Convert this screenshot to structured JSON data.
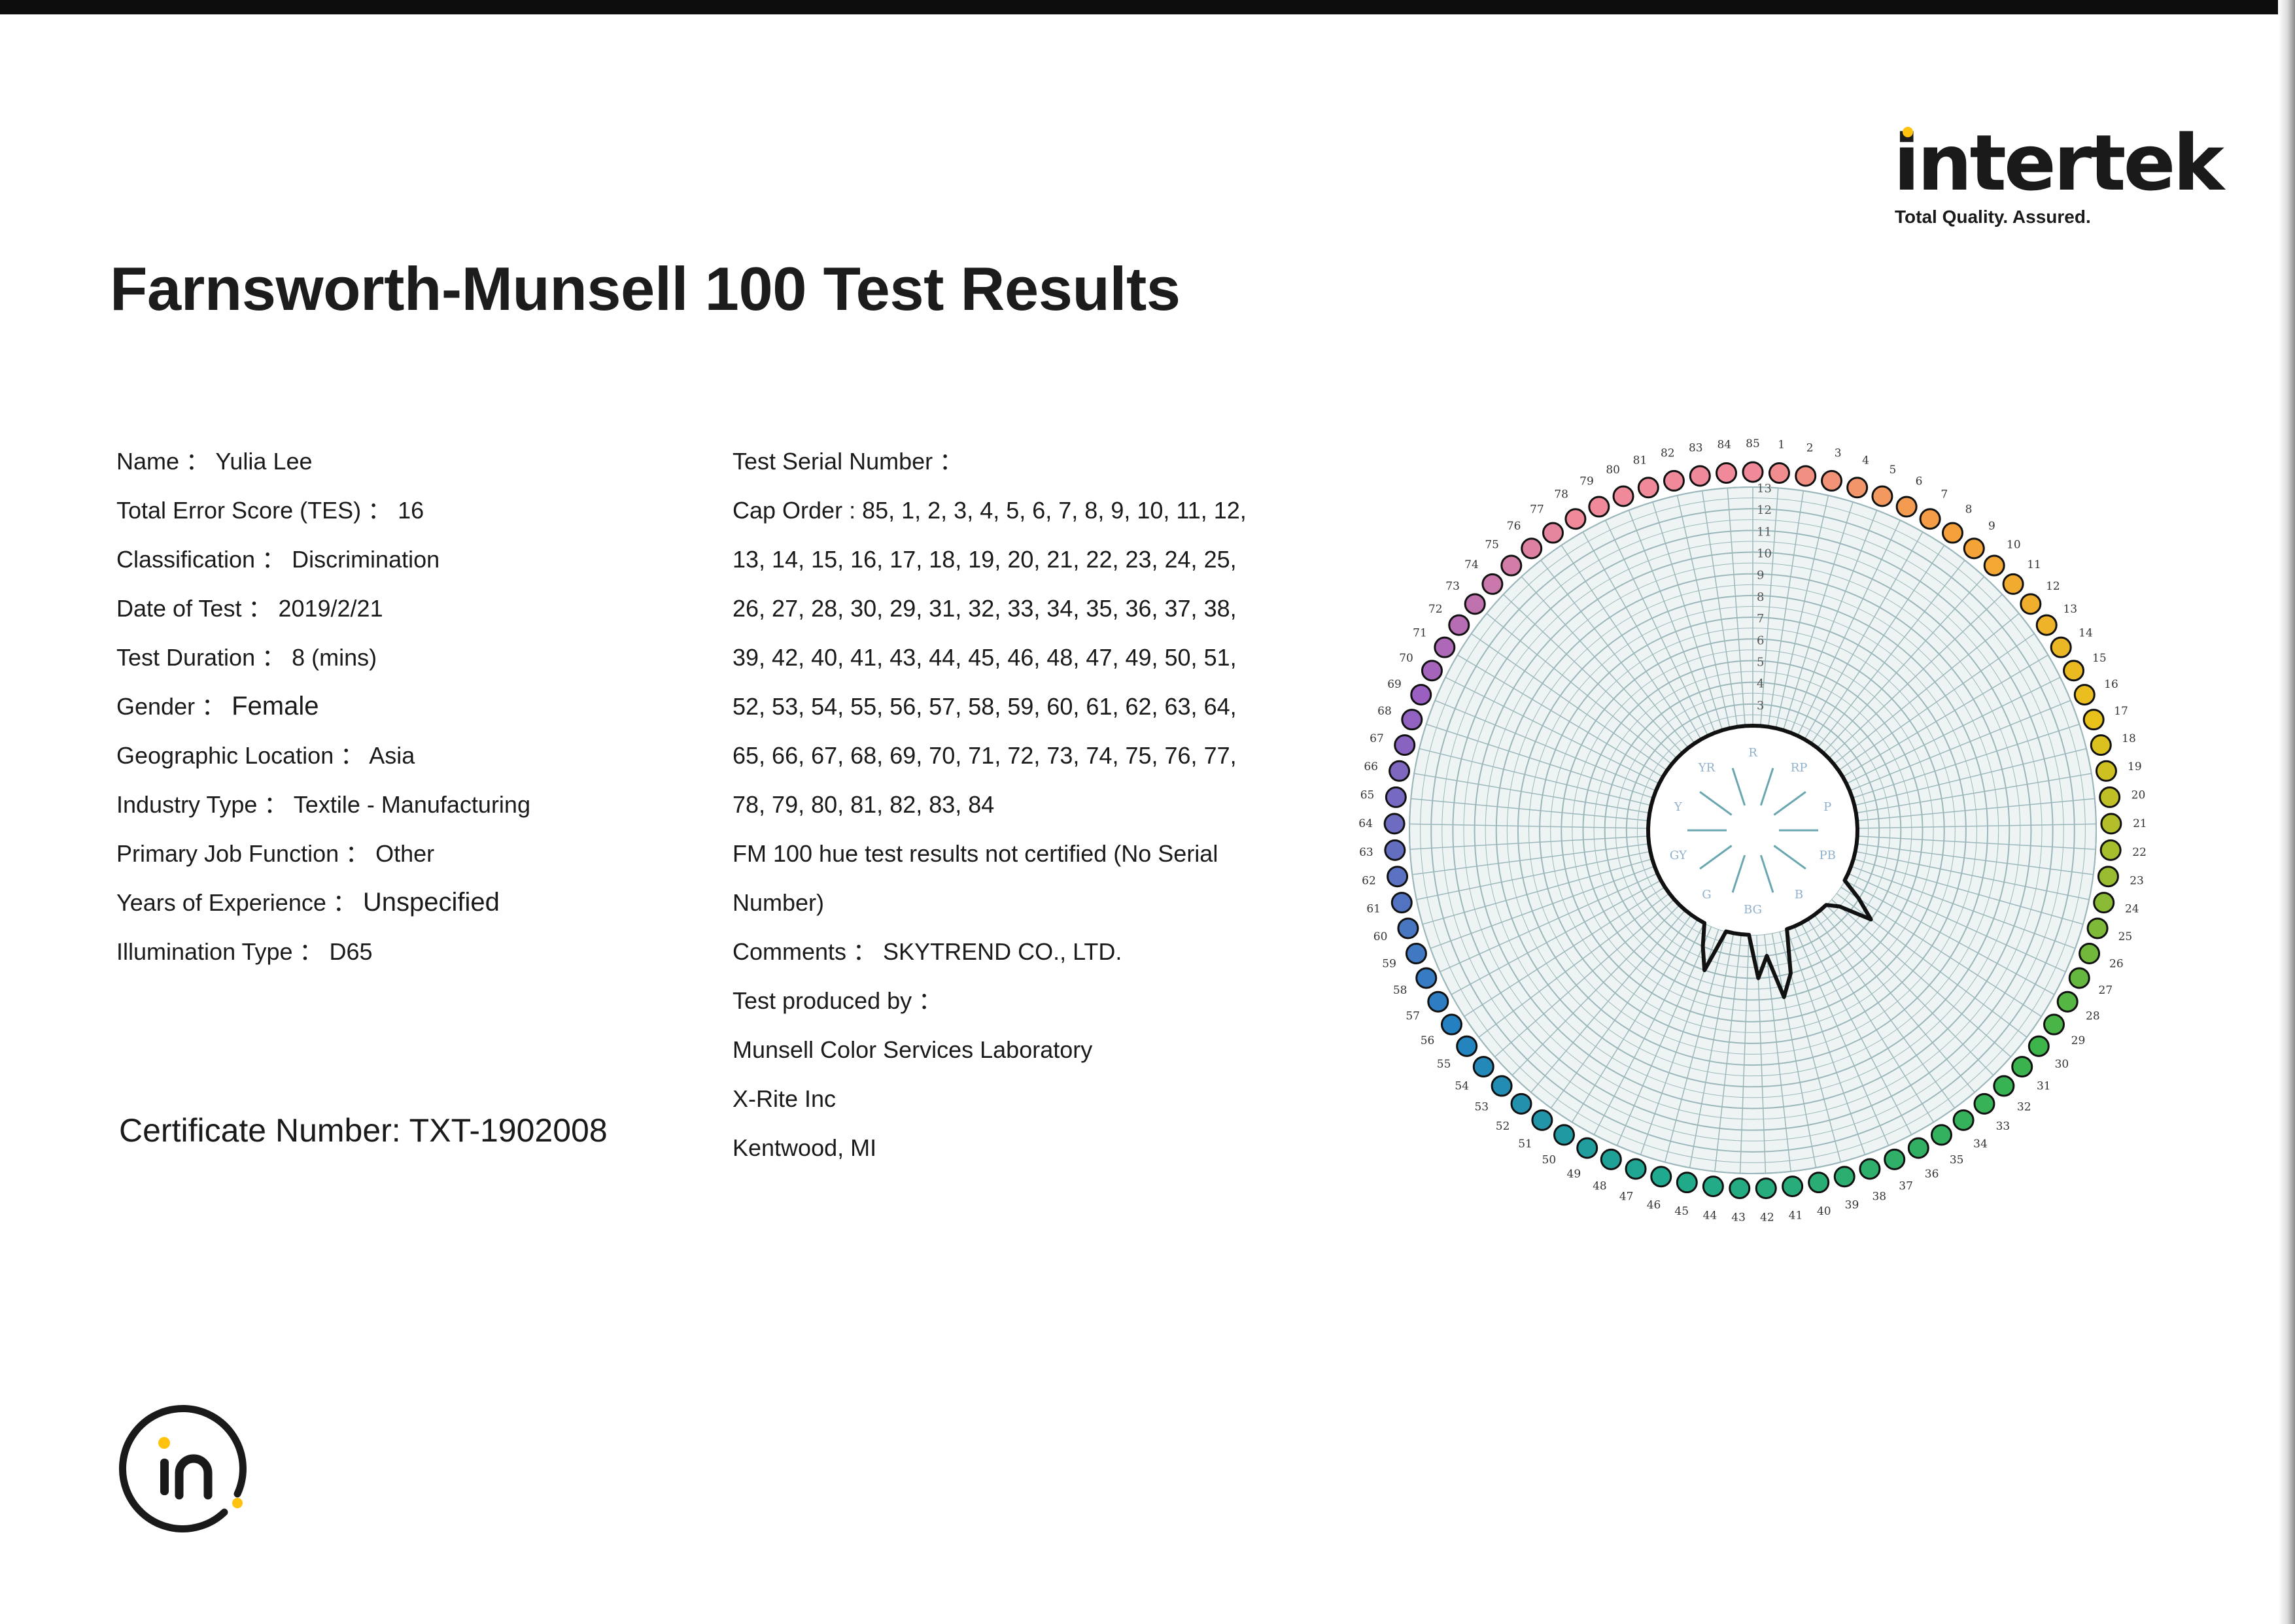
{
  "header": {
    "logo_text": "intertek",
    "logo_tagline": "Total Quality. Assured.",
    "title": "Farnsworth-Munsell 100 Test Results"
  },
  "details": {
    "name": "Name ： Yulia Lee",
    "tes": "Total Error Score (TES) ：  16",
    "classification": "Classification ： Discrimination",
    "date": "Date of Test ： 2019/2/21",
    "duration": "Test Duration ： 8 (mins)",
    "gender_label": "Gender ：",
    "gender_value": "Female",
    "location": "Geographic Location ： Asia",
    "industry": "Industry Type ： Textile - Manufacturing",
    "job": "Primary Job Function ： Other",
    "experience_label": "Years of Experience ：",
    "experience_value": "Unspecified",
    "illumination": "Illumination Type ： D65"
  },
  "certificate": "Certificate Number: TXT-1902008",
  "test_info": {
    "serial": "Test Serial Number ：",
    "cap_order_lines": [
      "Cap Order : 85, 1, 2, 3, 4, 5, 6, 7, 8, 9, 10, 11, 12,",
      "13, 14, 15, 16, 17, 18, 19, 20, 21, 22, 23, 24, 25,",
      "26, 27, 28, 30, 29, 31, 32, 33, 34, 35, 36, 37, 38,",
      "39, 42, 40, 41, 43, 44, 45, 46, 48, 47, 49, 50, 51,",
      "52, 53, 54, 55, 56, 57, 58, 59, 60, 61, 62, 63, 64,",
      "65, 66, 67, 68, 69, 70, 71, 72, 73, 74, 75, 76, 77,",
      "78, 79, 80, 81, 82, 83, 84"
    ],
    "certification_lines": [
      "FM 100 hue test results not certified (No Serial",
      "Number)"
    ],
    "comments": "Comments ： SKYTREND CO., LTD.",
    "produced_by": "Test produced by ：",
    "producer_lines": [
      "Munsell Color Services Laboratory",
      "X-Rite Inc",
      "Kentwood, MI"
    ]
  },
  "chart_data": {
    "type": "polar-error-plot",
    "cap_count": 85,
    "radial_scale_labels": [
      "13",
      "12",
      "11",
      "10",
      "9",
      "8",
      "7",
      "6",
      "5",
      "4",
      "3"
    ],
    "radial_max": 13,
    "baseline": 2,
    "hue_labels": [
      "R",
      "RP",
      "P",
      "PB",
      "B",
      "BG",
      "G",
      "GY",
      "Y",
      "YR"
    ],
    "errors": [
      2,
      2,
      2,
      2,
      2,
      2,
      2,
      2,
      2,
      2,
      2,
      2,
      2,
      2,
      2,
      2,
      2,
      2,
      2,
      2,
      2,
      2,
      2,
      2,
      2,
      2,
      2,
      2,
      3,
      4,
      2.5,
      2,
      2,
      2,
      2,
      2,
      2,
      2,
      4,
      5,
      3,
      4,
      2,
      2,
      2,
      2,
      4,
      3,
      2,
      2,
      2,
      2,
      2,
      2,
      2,
      2,
      2,
      2,
      2,
      2,
      2,
      2,
      2,
      2,
      2,
      2,
      2,
      2,
      2,
      2,
      2,
      2,
      2,
      2,
      2,
      2,
      2,
      2,
      2,
      2,
      2,
      2,
      2,
      2,
      2
    ],
    "cap_colors": {
      "orange": "#f5a03a",
      "yellow": "#e8c21a",
      "green": "#3cb44a",
      "teal": "#1fa98e",
      "blue": "#2580c2",
      "violet": "#9a5fc0",
      "pink": "#f08a9a"
    }
  }
}
